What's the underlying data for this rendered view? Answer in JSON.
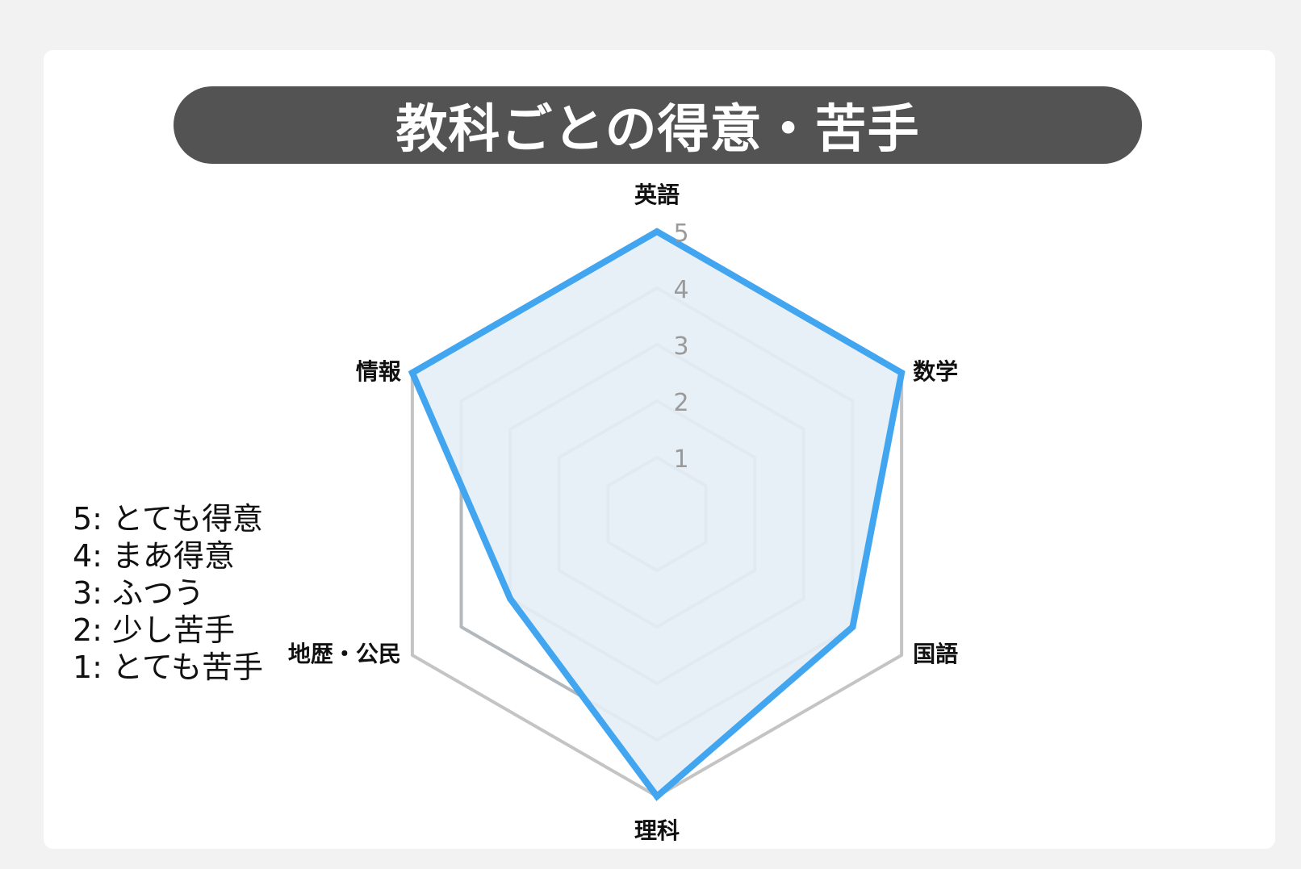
{
  "title": "教科ごとの得意・苦手",
  "chart_data": {
    "type": "radar",
    "axes": [
      "英語",
      "数学",
      "国語",
      "理科",
      "地歴・公民",
      "情報"
    ],
    "values": [
      5,
      5,
      4,
      5,
      3,
      5
    ],
    "range": [
      0,
      5
    ],
    "ticks": [
      1,
      2,
      3,
      4,
      5
    ],
    "tick_labels": [
      "1",
      "2",
      "3",
      "4",
      "5"
    ],
    "legend": [
      "5: とても得意",
      "4: まあ得意",
      "3: ふつう",
      "2: 少し苦手",
      "1: とても苦手"
    ],
    "legend_placement": "left",
    "grid": true
  },
  "colors": {
    "background": "#f2f2f2",
    "card": "#ffffff",
    "title_bar": "#535353",
    "title_text": "#ffffff",
    "series_line": "#42a5f0",
    "series_fill": "#e6eef6",
    "grid_line": "#b3b8bd",
    "outer_grid_line": "#c4c4c4",
    "tick_label": "#9a9a9a",
    "axis_label": "#111111"
  }
}
